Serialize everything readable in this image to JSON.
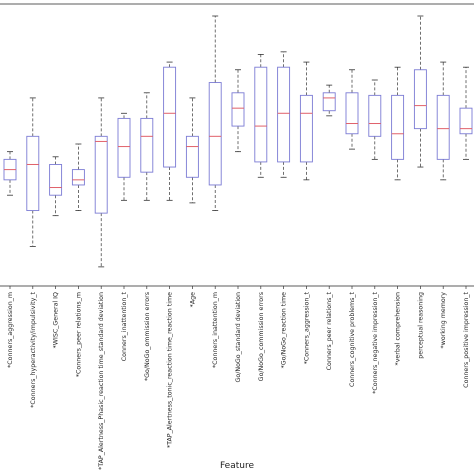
{
  "chart_data": {
    "type": "box",
    "xlabel": "Feature",
    "ylabel": "",
    "title": "",
    "ylim": [
      0,
      100
    ],
    "y_ticks_visible": false,
    "box_color": "#7b7bd4",
    "median_color": "#e0606a",
    "whisker_color": "#333333",
    "series": [
      {
        "label": "*Conners_aggression_m",
        "whisker_low": 30,
        "q1": 36,
        "median": 40,
        "q3": 44,
        "whisker_high": 47
      },
      {
        "label": "*Conners_hyperactivity/impulsivity_t",
        "whisker_low": 10,
        "q1": 24,
        "median": 42,
        "q3": 53,
        "whisker_high": 68
      },
      {
        "label": "*WISC_General IQ",
        "whisker_low": 22,
        "q1": 30,
        "median": 33,
        "q3": 42,
        "whisker_high": 45
      },
      {
        "label": "*Conners_peer relations_m",
        "whisker_low": 24,
        "q1": 34,
        "median": 36,
        "q3": 40,
        "whisker_high": 50
      },
      {
        "label": "*TAP_Alertness_Phasic_reaction time_standard deviation",
        "whisker_low": 2,
        "q1": 23,
        "median": 51,
        "q3": 53,
        "whisker_high": 68
      },
      {
        "label": "Conners_inattention_t",
        "whisker_low": 28,
        "q1": 37,
        "median": 49,
        "q3": 60,
        "whisker_high": 62
      },
      {
        "label": "*Go/NoGo_ommission errors",
        "whisker_low": 28,
        "q1": 39,
        "median": 53,
        "q3": 60,
        "whisker_high": 70
      },
      {
        "label": "*TAP_Alertness_tonic_reaction time_reaction time",
        "whisker_low": 28,
        "q1": 41,
        "median": 62,
        "q3": 80,
        "whisker_high": 82
      },
      {
        "label": "*Age",
        "whisker_low": 27,
        "q1": 37,
        "median": 49,
        "q3": 53,
        "whisker_high": 68
      },
      {
        "label": "*Conners_inattention_m",
        "whisker_low": 24,
        "q1": 34,
        "median": 53,
        "q3": 74,
        "whisker_high": 100
      },
      {
        "label": "Go/NoGo_standard deviation",
        "whisker_low": 47,
        "q1": 57,
        "median": 64,
        "q3": 70,
        "whisker_high": 79
      },
      {
        "label": "Go/NoGo_commission errors",
        "whisker_low": 37,
        "q1": 43,
        "median": 57,
        "q3": 80,
        "whisker_high": 85
      },
      {
        "label": "*Go/NoGo_reaction time",
        "whisker_low": 37,
        "q1": 43,
        "median": 62,
        "q3": 80,
        "whisker_high": 86
      },
      {
        "label": "*Conners_aggression_t",
        "whisker_low": 36,
        "q1": 43,
        "median": 62,
        "q3": 69,
        "whisker_high": 82
      },
      {
        "label": "Conners_peer relations_t",
        "whisker_low": 61,
        "q1": 63,
        "median": 68,
        "q3": 70,
        "whisker_high": 73
      },
      {
        "label": "Conners_cognitive problems_t",
        "whisker_low": 48,
        "q1": 54,
        "median": 58,
        "q3": 70,
        "whisker_high": 79
      },
      {
        "label": "*Conners_negative impression_t",
        "whisker_low": 44,
        "q1": 53,
        "median": 58,
        "q3": 69,
        "whisker_high": 75
      },
      {
        "label": "*verbal comprehension",
        "whisker_low": 36,
        "q1": 44,
        "median": 54,
        "q3": 69,
        "whisker_high": 80
      },
      {
        "label": "perceptual reasoning",
        "whisker_low": 41,
        "q1": 56,
        "median": 65,
        "q3": 79,
        "whisker_high": 100
      },
      {
        "label": "*working memory",
        "whisker_low": 36,
        "q1": 44,
        "median": 56,
        "q3": 69,
        "whisker_high": 82
      },
      {
        "label": "Conners_positive impression_t",
        "whisker_low": 44,
        "q1": 54,
        "median": 56,
        "q3": 64,
        "whisker_high": 80
      }
    ]
  }
}
